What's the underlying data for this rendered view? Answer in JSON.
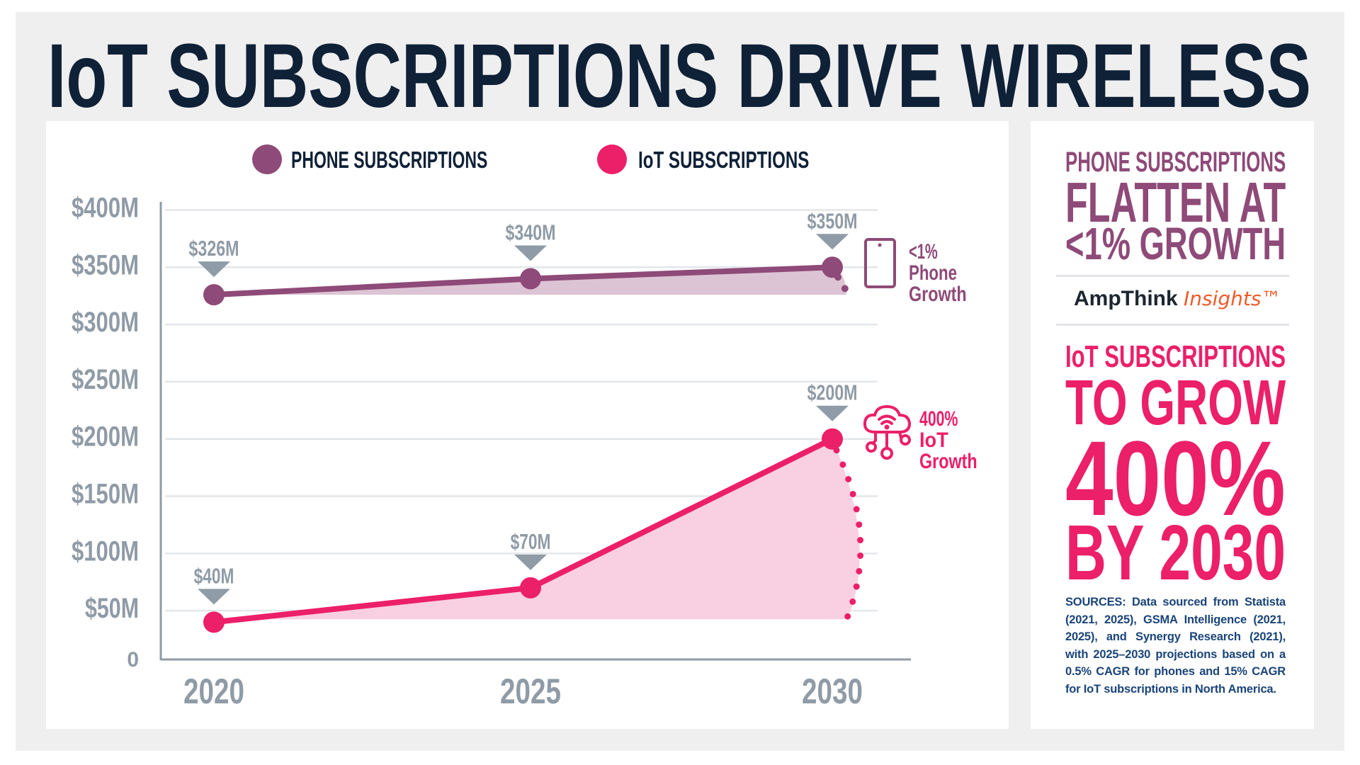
{
  "title": "IoT SUBSCRIPTIONS DRIVE WIRELESS",
  "colors": {
    "phone": "#8e4a78",
    "iot": "#ec1f69",
    "phone_area": "#dcc4d4",
    "iot_area": "#f9d0e1",
    "axis_label": "#8f9ba6",
    "title": "#0f2137"
  },
  "chart_data": {
    "type": "area",
    "x": [
      "2020",
      "2025",
      "2030"
    ],
    "ylim": [
      0,
      400
    ],
    "yticks": [
      0,
      50,
      100,
      150,
      200,
      250,
      300,
      350,
      400
    ],
    "ytick_labels": [
      "0",
      "$50M",
      "$100M",
      "$150M",
      "$200M",
      "$250M",
      "$300M",
      "$350M",
      "$400M"
    ],
    "grid": true,
    "legend_position": "top",
    "series": [
      {
        "name": "PHONE SUBSCRIPTIONS",
        "values": [
          326,
          340,
          350
        ],
        "data_labels": [
          "$326M",
          "$340M",
          "$350M"
        ]
      },
      {
        "name": "IoT SUBSCRIPTIONS",
        "values": [
          40,
          70,
          200
        ],
        "data_labels": [
          "$40M",
          "$70M",
          "$200M"
        ]
      }
    ],
    "annotations": [
      {
        "series": "PHONE SUBSCRIPTIONS",
        "icon": "smartphone-icon",
        "lines": [
          "<1%",
          "Phone",
          "Growth"
        ]
      },
      {
        "series": "IoT SUBSCRIPTIONS",
        "icon": "cloud-network-icon",
        "lines": [
          "400%",
          "IoT",
          "Growth"
        ]
      }
    ]
  },
  "sidebar": {
    "phone_kicker": "PHONE SUBSCRIPTIONS",
    "phone_line1": "FLATTEN AT",
    "phone_line2": "<1% GROWTH",
    "brand_name": "AmpThink",
    "brand_suffix": "Insights™",
    "iot_kicker": "IoT SUBSCRIPTIONS",
    "iot_line1": "TO GROW",
    "iot_line2": "400%",
    "iot_line3": "BY 2030",
    "sources": "SOURCES: Data sourced from Statista (2021, 2025), GSMA Intelligence (2021, 2025), and Synergy Research (2021), with 2025–2030 projections based on a 0.5% CAGR for phones and 15% CAGR for IoT subscriptions in North America."
  }
}
